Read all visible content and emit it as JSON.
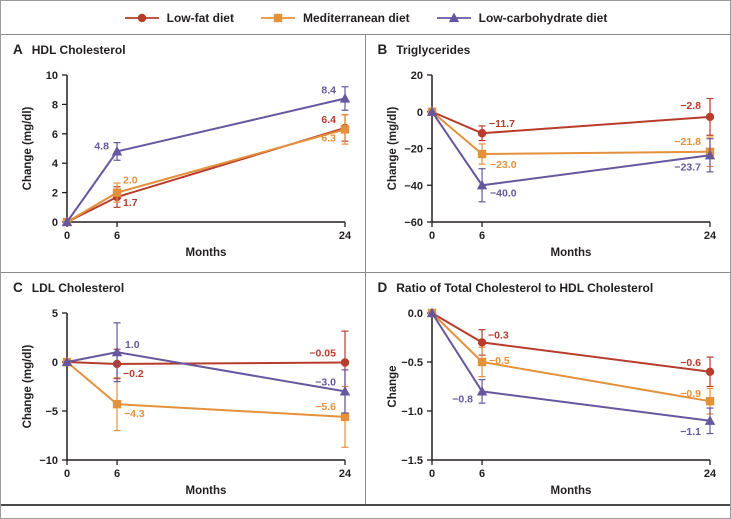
{
  "figure": {
    "axis_color": "#231F20",
    "divider_color": "#8c8c8c",
    "background": "#ffffff"
  },
  "legend": {
    "items": [
      {
        "label": "Low-fat diet",
        "marker": "circle",
        "color": "#B73C2B"
      },
      {
        "label": "Mediterranean diet",
        "marker": "square",
        "color": "#E4913C"
      },
      {
        "label": "Low-carbohydrate diet",
        "marker": "triangle",
        "color": "#67579F"
      }
    ]
  },
  "chart_data": [
    {
      "type": "line",
      "panel_letter": "A",
      "title": "HDL Cholesterol",
      "xlabel": "Months",
      "ylabel": "Change (mg/dl)",
      "xticks": [
        0,
        6,
        24
      ],
      "ylim": [
        0,
        10
      ],
      "yticks": [
        10,
        8,
        6,
        4,
        2,
        0
      ],
      "ytick_decimals": 0,
      "series": [
        {
          "name": "Low-fat diet",
          "color": "#B73C2B",
          "marker": "circle",
          "points": [
            {
              "x": 0,
              "y": 0
            },
            {
              "x": 6,
              "y": 1.7,
              "err": 0.7,
              "label": "1.7",
              "dx": 6,
              "dy": 9,
              "anchor": "start"
            },
            {
              "x": 24,
              "y": 6.4,
              "err": 0.9,
              "label": "6.4",
              "dx": -9,
              "dy": -5,
              "anchor": "end"
            }
          ]
        },
        {
          "name": "Mediterranean diet",
          "color": "#E4913C",
          "marker": "square",
          "points": [
            {
              "x": 0,
              "y": 0
            },
            {
              "x": 6,
              "y": 2.0,
              "err": 0.65,
              "label": "2.0",
              "dx": 6,
              "dy": -9,
              "anchor": "start"
            },
            {
              "x": 24,
              "y": 6.3,
              "err": 1.0,
              "label": "6.3",
              "dx": -9,
              "dy": 12,
              "anchor": "end"
            }
          ]
        },
        {
          "name": "Low-carbohydrate diet",
          "color": "#67579F",
          "marker": "triangle",
          "points": [
            {
              "x": 0,
              "y": 0
            },
            {
              "x": 6,
              "y": 4.8,
              "err": 0.6,
              "label": "4.8",
              "dx": -8,
              "dy": -2,
              "anchor": "end"
            },
            {
              "x": 24,
              "y": 8.4,
              "err": 0.8,
              "label": "8.4",
              "dx": -9,
              "dy": -5,
              "anchor": "end"
            }
          ]
        }
      ]
    },
    {
      "type": "line",
      "panel_letter": "B",
      "title": "Triglycerides",
      "xlabel": "Months",
      "ylabel": "Change (mg/dl)",
      "xticks": [
        0,
        6,
        24
      ],
      "ylim": [
        -60,
        20
      ],
      "yticks": [
        20,
        0,
        -20,
        -40,
        -60
      ],
      "ytick_decimals": 0,
      "series": [
        {
          "name": "Low-fat diet",
          "color": "#B73C2B",
          "marker": "circle",
          "points": [
            {
              "x": 0,
              "y": 0
            },
            {
              "x": 6,
              "y": -11.7,
              "err": 4,
              "label": "−11.7",
              "dx": 7,
              "dy": -6,
              "anchor": "start"
            },
            {
              "x": 24,
              "y": -2.8,
              "err": 10,
              "label": "−2.8",
              "dx": -9,
              "dy": -8,
              "anchor": "end"
            }
          ]
        },
        {
          "name": "Mediterranean diet",
          "color": "#E4913C",
          "marker": "square",
          "points": [
            {
              "x": 0,
              "y": 0
            },
            {
              "x": 6,
              "y": -23.0,
              "err": 5.5,
              "label": "−23.0",
              "dx": 8,
              "dy": 14,
              "anchor": "start"
            },
            {
              "x": 24,
              "y": -21.8,
              "err": 8,
              "label": "−21.8",
              "dx": -9,
              "dy": -7,
              "anchor": "end"
            }
          ]
        },
        {
          "name": "Low-carbohydrate diet",
          "color": "#67579F",
          "marker": "triangle",
          "points": [
            {
              "x": 0,
              "y": 0
            },
            {
              "x": 6,
              "y": -40.0,
              "err": 9,
              "label": "−40.0",
              "dx": 8,
              "dy": 11,
              "anchor": "start"
            },
            {
              "x": 24,
              "y": -23.7,
              "err": 9,
              "label": "−23.7",
              "dx": -9,
              "dy": 15,
              "anchor": "end"
            }
          ]
        }
      ]
    },
    {
      "type": "line",
      "panel_letter": "C",
      "title": "LDL Cholesterol",
      "xlabel": "Months",
      "ylabel": "Change (mg/dl)",
      "xticks": [
        0,
        6,
        24
      ],
      "ylim": [
        -10,
        5
      ],
      "yticks": [
        5,
        0,
        -5,
        -10
      ],
      "ytick_decimals": 0,
      "series": [
        {
          "name": "Low-fat diet",
          "color": "#B73C2B",
          "marker": "circle",
          "points": [
            {
              "x": 0,
              "y": 0
            },
            {
              "x": 6,
              "y": -0.2,
              "err": 1.5,
              "label": "−0.2",
              "dx": 6,
              "dy": 13,
              "anchor": "start"
            },
            {
              "x": 24,
              "y": -0.05,
              "err": 3.2,
              "label": "−0.05",
              "dx": -9,
              "dy": -6,
              "anchor": "end"
            }
          ]
        },
        {
          "name": "Mediterranean diet",
          "color": "#E4913C",
          "marker": "square",
          "points": [
            {
              "x": 0,
              "y": 0
            },
            {
              "x": 6,
              "y": -4.3,
              "err": 2.7,
              "label": "−4.3",
              "dx": 7,
              "dy": 13,
              "anchor": "start"
            },
            {
              "x": 24,
              "y": -5.6,
              "err": 3.1,
              "label": "−5.6",
              "dx": -9,
              "dy": -7,
              "anchor": "end"
            }
          ]
        },
        {
          "name": "Low-carbohydrate diet",
          "color": "#67579F",
          "marker": "triangle",
          "points": [
            {
              "x": 0,
              "y": 0
            },
            {
              "x": 6,
              "y": 1.0,
              "err": 3.0,
              "label": "1.0",
              "dx": 8,
              "dy": -4,
              "anchor": "start"
            },
            {
              "x": 24,
              "y": -3.0,
              "err": 2.2,
              "label": "−3.0",
              "dx": -9,
              "dy": -6,
              "anchor": "end"
            }
          ]
        }
      ]
    },
    {
      "type": "line",
      "panel_letter": "D",
      "title": "Ratio of Total Cholesterol to HDL Cholesterol",
      "xlabel": "Months",
      "ylabel": "Change",
      "xticks": [
        0,
        6,
        24
      ],
      "ylim": [
        -1.5,
        0
      ],
      "yticks": [
        0,
        -0.5,
        -1.0,
        -1.5
      ],
      "ytick_decimals": 1,
      "series": [
        {
          "name": "Low-fat diet",
          "color": "#B73C2B",
          "marker": "circle",
          "points": [
            {
              "x": 0,
              "y": 0
            },
            {
              "x": 6,
              "y": -0.3,
              "err": 0.13,
              "label": "−0.3",
              "dx": 6,
              "dy": -4,
              "anchor": "start"
            },
            {
              "x": 24,
              "y": -0.6,
              "err": 0.15,
              "label": "−0.6",
              "dx": -9,
              "dy": -6,
              "anchor": "end"
            }
          ]
        },
        {
          "name": "Mediterranean diet",
          "color": "#E4913C",
          "marker": "square",
          "points": [
            {
              "x": 0,
              "y": 0
            },
            {
              "x": 6,
              "y": -0.5,
              "err": 0.15,
              "label": "−0.5",
              "dx": 7,
              "dy": 2,
              "anchor": "start"
            },
            {
              "x": 24,
              "y": -0.9,
              "err": 0.13,
              "label": "−0.9",
              "dx": -9,
              "dy": -4,
              "anchor": "end"
            }
          ]
        },
        {
          "name": "Low-carbohydrate diet",
          "color": "#67579F",
          "marker": "triangle",
          "points": [
            {
              "x": 0,
              "y": 0
            },
            {
              "x": 6,
              "y": -0.8,
              "err": 0.12,
              "label": "−0.8",
              "dx": -9,
              "dy": 11,
              "anchor": "end"
            },
            {
              "x": 24,
              "y": -1.1,
              "err": 0.13,
              "label": "−1.1",
              "dx": -9,
              "dy": 14,
              "anchor": "end"
            }
          ]
        }
      ]
    }
  ]
}
